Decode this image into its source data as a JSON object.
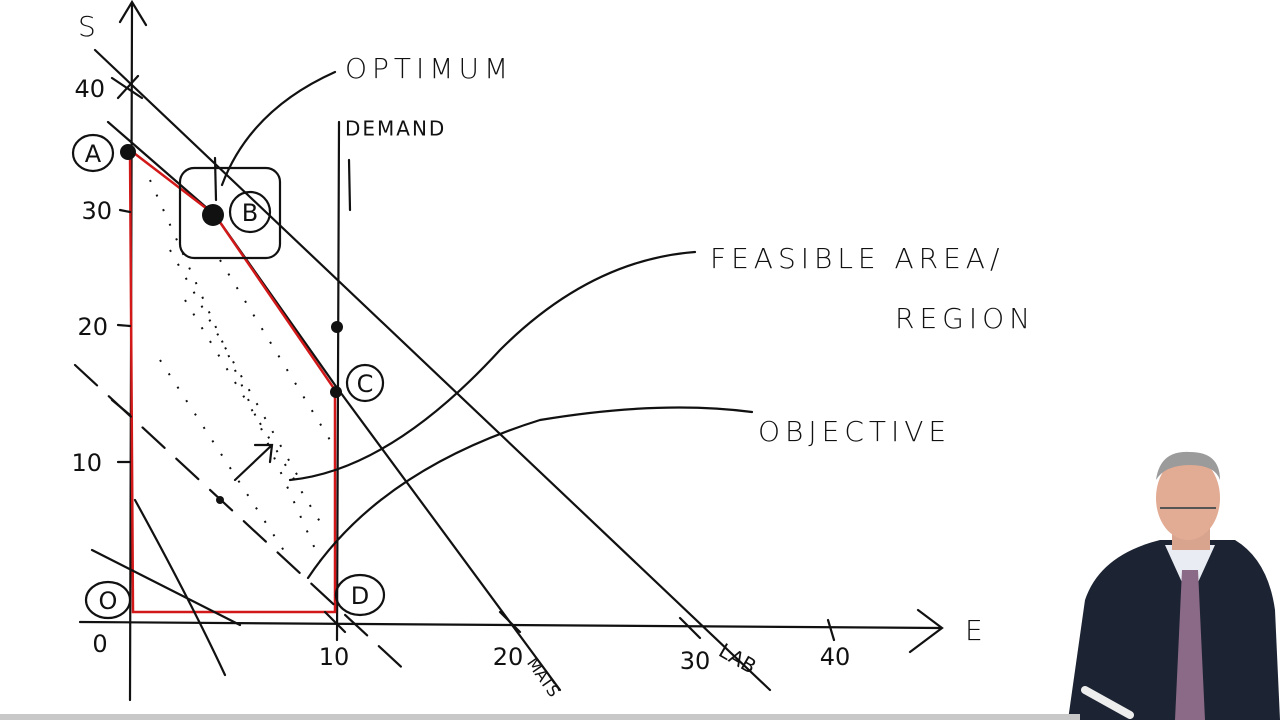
{
  "axes": {
    "y_label": "S",
    "x_label": "E",
    "origin": "0",
    "y_ticks": [
      "40",
      "30",
      "20",
      "10"
    ],
    "x_ticks": [
      "10",
      "20",
      "30",
      "40"
    ]
  },
  "points": {
    "a": "A",
    "b": "B",
    "c": "C",
    "d": "D",
    "o": "O"
  },
  "line_labels": {
    "demand": "DEMAND",
    "mats": "MATS",
    "lab": "LAB"
  },
  "annotations": {
    "optimum": "OPTIMUM",
    "feasible_1": "FEASIBLE AREA/",
    "feasible_2": "REGION",
    "objective": "OBJECTIVE"
  }
}
